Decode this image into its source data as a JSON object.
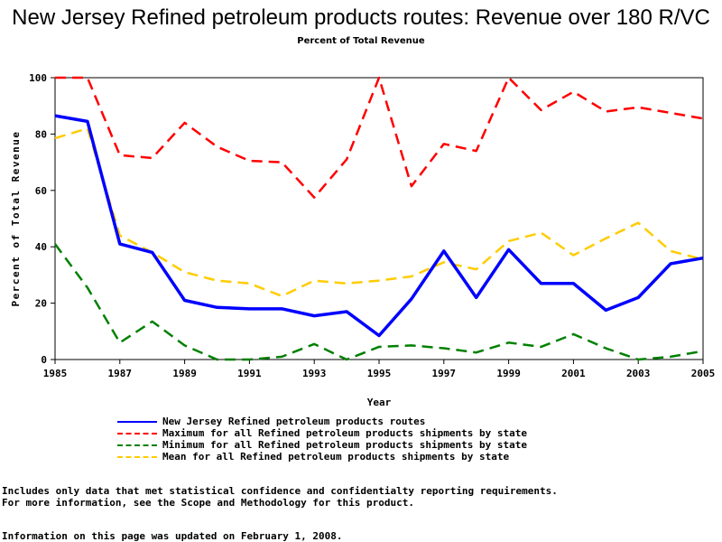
{
  "title": "New Jersey Refined petroleum products routes: Revenue over 180 R/VC",
  "subtitle": "Percent of Total Revenue",
  "footnotes": [
    "Includes only data that met statistical confidence and confidentialty reporting requirements.",
    "For more information, see the Scope and Methodology for this product.",
    "Information on this page was updated on February 1, 2008."
  ],
  "chart_data": {
    "type": "line",
    "title": "New Jersey Refined petroleum products routes: Revenue over 180 R/VC",
    "subtitle": "Percent of Total Revenue",
    "xlabel": "Year",
    "ylabel": "Percent of Total Revenue",
    "xlim": [
      1985,
      2005
    ],
    "ylim": [
      0,
      100
    ],
    "x_ticks": [
      1985,
      1987,
      1989,
      1991,
      1993,
      1995,
      1997,
      1999,
      2001,
      2003,
      2005
    ],
    "y_ticks": [
      0,
      20,
      40,
      60,
      80,
      100
    ],
    "grid": false,
    "legend_position": "bottom",
    "x": [
      1985,
      1986,
      1987,
      1988,
      1989,
      1990,
      1991,
      1992,
      1993,
      1994,
      1995,
      1996,
      1997,
      1998,
      1999,
      2000,
      2001,
      2002,
      2003,
      2004,
      2005
    ],
    "series": [
      {
        "name": "New Jersey Refined petroleum products routes",
        "color": "#0000ff",
        "style": "solid",
        "values": [
          86.5,
          84.5,
          41,
          38,
          21,
          18.5,
          18,
          18,
          15.5,
          17,
          8.5,
          21.5,
          38.5,
          22,
          39,
          27,
          27,
          17.5,
          22,
          34,
          36
        ]
      },
      {
        "name": "Maximum for all Refined petroleum products shipments by state",
        "color": "#ff0000",
        "style": "dashed",
        "values": [
          100,
          100,
          72.5,
          71.5,
          84,
          75.5,
          70.5,
          70,
          57.5,
          71,
          100,
          61.5,
          76.5,
          74,
          100,
          88.5,
          95,
          88,
          89.5,
          87.5,
          85.5
        ]
      },
      {
        "name": "Minimum for all Refined petroleum products shipments by state",
        "color": "#008000",
        "style": "dashed",
        "values": [
          41,
          25.5,
          6,
          13.5,
          5,
          0,
          0,
          1,
          5.5,
          0,
          4.5,
          5,
          4,
          2.5,
          6,
          4.5,
          9,
          4,
          0,
          1,
          3
        ]
      },
      {
        "name": "Mean for all Refined petroleum products shipments by state",
        "color": "#ffcc00",
        "style": "dashed",
        "values": [
          78.5,
          82,
          44,
          38,
          31,
          28,
          27,
          22.5,
          28,
          27,
          28,
          29.5,
          34.5,
          32,
          42,
          45,
          37,
          43,
          48.5,
          38.5,
          35.5
        ]
      }
    ]
  }
}
